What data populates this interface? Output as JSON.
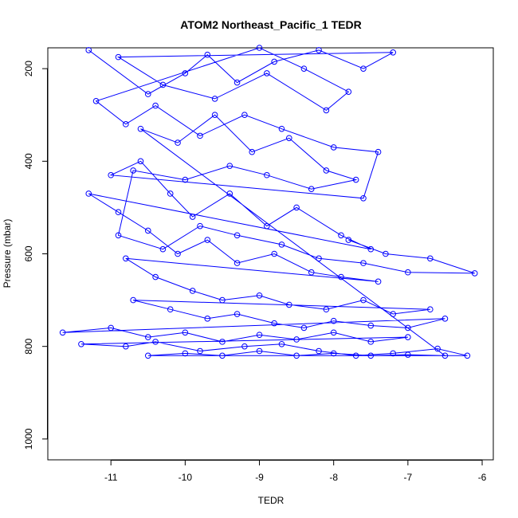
{
  "chart_data": {
    "type": "scatter",
    "title": "ATOM2 Northeast_Pacific_1 TEDR",
    "xlabel": "TEDR",
    "ylabel": "Pressure (mbar)",
    "xlim": [
      -11.85,
      -5.85
    ],
    "ylim": [
      1045,
      155
    ],
    "y_reversed": true,
    "x_ticks": [
      -11,
      -10,
      -9,
      -8,
      -7,
      -6
    ],
    "y_ticks": [
      200,
      400,
      600,
      800,
      1000
    ],
    "grid": false,
    "legend": "none",
    "series": [
      {
        "color": "#0000ff",
        "marker": "open-circle",
        "line": true,
        "points": [
          [
            -11.3,
            160
          ],
          [
            -10.5,
            255
          ],
          [
            -10.0,
            210
          ],
          [
            -9.7,
            170
          ],
          [
            -9.3,
            230
          ],
          [
            -8.8,
            185
          ],
          [
            -8.2,
            160
          ],
          [
            -7.6,
            200
          ],
          [
            -7.2,
            165
          ],
          [
            -10.9,
            175
          ],
          [
            -10.3,
            235
          ],
          [
            -9.6,
            265
          ],
          [
            -8.9,
            210
          ],
          [
            -8.1,
            290
          ],
          [
            -7.8,
            250
          ],
          [
            -8.4,
            200
          ],
          [
            -9.0,
            155
          ],
          [
            -11.2,
            270
          ],
          [
            -10.8,
            320
          ],
          [
            -10.4,
            280
          ],
          [
            -9.8,
            345
          ],
          [
            -9.2,
            300
          ],
          [
            -8.7,
            330
          ],
          [
            -8.0,
            370
          ],
          [
            -7.4,
            380
          ],
          [
            -7.6,
            480
          ],
          [
            -11.0,
            430
          ],
          [
            -10.6,
            400
          ],
          [
            -10.2,
            470
          ],
          [
            -9.9,
            520
          ],
          [
            -9.4,
            470
          ],
          [
            -8.9,
            540
          ],
          [
            -8.5,
            500
          ],
          [
            -7.9,
            560
          ],
          [
            -7.5,
            590
          ],
          [
            -11.3,
            470
          ],
          [
            -10.9,
            510
          ],
          [
            -10.5,
            550
          ],
          [
            -10.1,
            600
          ],
          [
            -9.7,
            570
          ],
          [
            -9.3,
            620
          ],
          [
            -8.8,
            600
          ],
          [
            -8.3,
            640
          ],
          [
            -7.9,
            650
          ],
          [
            -7.4,
            660
          ],
          [
            -10.8,
            610
          ],
          [
            -10.4,
            650
          ],
          [
            -9.9,
            680
          ],
          [
            -9.5,
            700
          ],
          [
            -9.0,
            690
          ],
          [
            -8.6,
            710
          ],
          [
            -8.1,
            720
          ],
          [
            -7.6,
            700
          ],
          [
            -7.2,
            730
          ],
          [
            -6.7,
            720
          ],
          [
            -10.7,
            700
          ],
          [
            -10.2,
            720
          ],
          [
            -9.7,
            740
          ],
          [
            -9.3,
            730
          ],
          [
            -8.8,
            750
          ],
          [
            -8.4,
            760
          ],
          [
            -8.0,
            745
          ],
          [
            -7.5,
            755
          ],
          [
            -7.0,
            760
          ],
          [
            -6.5,
            740
          ],
          [
            -11.65,
            770
          ],
          [
            -11.0,
            760
          ],
          [
            -10.5,
            780
          ],
          [
            -10.0,
            770
          ],
          [
            -9.5,
            790
          ],
          [
            -9.0,
            775
          ],
          [
            -8.5,
            785
          ],
          [
            -8.0,
            770
          ],
          [
            -7.5,
            790
          ],
          [
            -7.0,
            780
          ],
          [
            -11.4,
            795
          ],
          [
            -10.8,
            800
          ],
          [
            -10.4,
            790
          ],
          [
            -9.8,
            810
          ],
          [
            -9.2,
            800
          ],
          [
            -8.7,
            795
          ],
          [
            -8.2,
            810
          ],
          [
            -7.7,
            820
          ],
          [
            -7.2,
            815
          ],
          [
            -6.6,
            805
          ],
          [
            -6.2,
            820
          ],
          [
            -10.5,
            820
          ],
          [
            -10.0,
            815
          ],
          [
            -9.5,
            820
          ],
          [
            -9.0,
            810
          ],
          [
            -8.5,
            820
          ],
          [
            -8.0,
            815
          ],
          [
            -7.5,
            820
          ],
          [
            -7.0,
            818
          ],
          [
            -6.5,
            820
          ],
          [
            -10.6,
            330
          ],
          [
            -10.1,
            360
          ],
          [
            -9.6,
            300
          ],
          [
            -9.1,
            380
          ],
          [
            -8.6,
            350
          ],
          [
            -8.1,
            420
          ],
          [
            -7.7,
            440
          ],
          [
            -8.3,
            460
          ],
          [
            -8.9,
            430
          ],
          [
            -9.4,
            410
          ],
          [
            -10.0,
            440
          ],
          [
            -10.7,
            420
          ],
          [
            -10.9,
            560
          ],
          [
            -10.3,
            590
          ],
          [
            -9.8,
            540
          ],
          [
            -9.3,
            560
          ],
          [
            -8.7,
            580
          ],
          [
            -8.2,
            610
          ],
          [
            -7.6,
            620
          ],
          [
            -7.0,
            640
          ],
          [
            -6.1,
            642
          ],
          [
            -6.7,
            610
          ],
          [
            -7.3,
            600
          ],
          [
            -7.8,
            570
          ]
        ]
      }
    ]
  }
}
